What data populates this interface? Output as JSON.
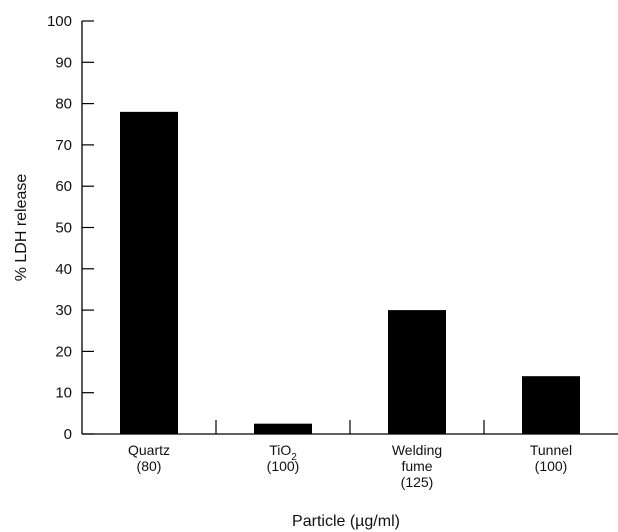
{
  "chart_data": {
    "type": "bar",
    "title": "",
    "xlabel": "Particle (µg/ml)",
    "ylabel": "% LDH release",
    "ylim": [
      0,
      100
    ],
    "yticks": [
      "0",
      "10",
      "20",
      "30",
      "40",
      "50",
      "60",
      "70",
      "80",
      "90",
      "100"
    ],
    "categories": [
      {
        "lines": [
          "Quartz",
          "(80)"
        ]
      },
      {
        "name": "TiO",
        "sub": "2",
        "lines": [
          "(100)"
        ]
      },
      {
        "lines": [
          "Welding",
          "fume",
          "(125)"
        ]
      },
      {
        "lines": [
          "Tunnel",
          "(100)"
        ]
      }
    ],
    "values": [
      78,
      2.5,
      30,
      14
    ],
    "colors": {
      "bar": "#000000",
      "axis": "#000000"
    },
    "grid": false
  }
}
